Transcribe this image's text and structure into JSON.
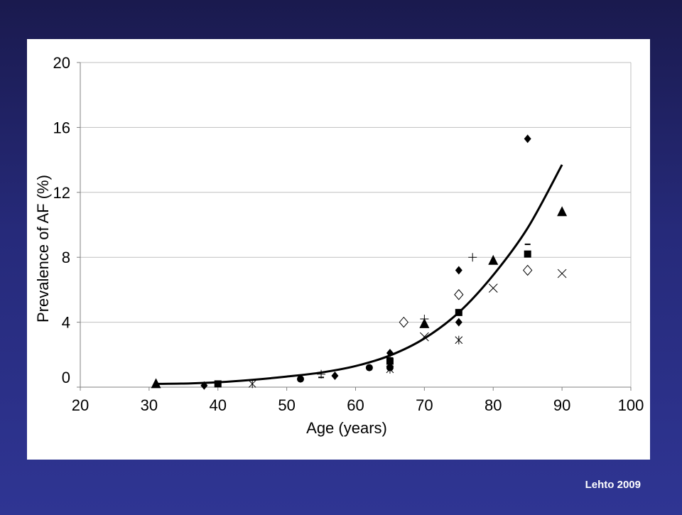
{
  "chart_data": {
    "type": "scatter",
    "title": "",
    "xlabel": "Age (years)",
    "ylabel": "Prevalence of AF (%)",
    "xlim": [
      20,
      100
    ],
    "ylim": [
      0,
      20
    ],
    "x_ticks": [
      20,
      30,
      40,
      50,
      60,
      70,
      80,
      90,
      100
    ],
    "y_ticks": [
      0,
      4,
      8,
      12,
      16,
      20
    ],
    "grid": "horizontal",
    "legend": "none",
    "series": [
      {
        "marker": "diamond-filled",
        "points": [
          [
            38,
            0.1
          ],
          [
            57,
            0.7
          ],
          [
            65,
            2.1
          ],
          [
            75,
            7.2
          ],
          [
            75,
            4.0
          ],
          [
            85,
            15.3
          ]
        ]
      },
      {
        "marker": "triangle-filled",
        "points": [
          [
            31,
            0.2
          ],
          [
            70,
            3.9
          ],
          [
            80,
            7.8
          ],
          [
            90,
            10.8
          ]
        ]
      },
      {
        "marker": "square-filled",
        "points": [
          [
            40,
            0.2
          ],
          [
            65,
            1.6
          ],
          [
            75,
            4.6
          ],
          [
            85,
            8.2
          ]
        ]
      },
      {
        "marker": "circle-filled",
        "points": [
          [
            52,
            0.5
          ],
          [
            62,
            1.2
          ],
          [
            65,
            1.2
          ]
        ]
      },
      {
        "marker": "diamond-open",
        "points": [
          [
            67,
            4.0
          ],
          [
            75,
            5.7
          ],
          [
            85,
            7.2
          ]
        ]
      },
      {
        "marker": "x",
        "points": [
          [
            70,
            3.1
          ],
          [
            80,
            6.1
          ],
          [
            90,
            7.0
          ]
        ]
      },
      {
        "marker": "asterisk",
        "points": [
          [
            45,
            0.2
          ],
          [
            65,
            1.1
          ],
          [
            75,
            2.9
          ]
        ]
      },
      {
        "marker": "plus",
        "points": [
          [
            55,
            0.8
          ],
          [
            70,
            4.2
          ],
          [
            77,
            8.0
          ]
        ]
      },
      {
        "marker": "dash",
        "points": [
          [
            55,
            0.6
          ],
          [
            65,
            1.8
          ],
          [
            85,
            8.8
          ]
        ]
      }
    ],
    "trendline": {
      "type": "exponential",
      "x_range": [
        31,
        90
      ],
      "points": [
        [
          31,
          0.2
        ],
        [
          36,
          0.23
        ],
        [
          40,
          0.3
        ],
        [
          45,
          0.45
        ],
        [
          50,
          0.65
        ],
        [
          55,
          0.9
        ],
        [
          60,
          1.3
        ],
        [
          65,
          1.95
        ],
        [
          70,
          3.0
        ],
        [
          75,
          4.6
        ],
        [
          80,
          6.9
        ],
        [
          85,
          9.8
        ],
        [
          90,
          13.7
        ]
      ]
    }
  },
  "citation": "Lehto 2009",
  "colors": {
    "background_top": "#1a1a4e",
    "background_bottom": "#2f3593",
    "panel": "#ffffff",
    "gridline": "#bfbfbf",
    "marker": "#000000"
  }
}
